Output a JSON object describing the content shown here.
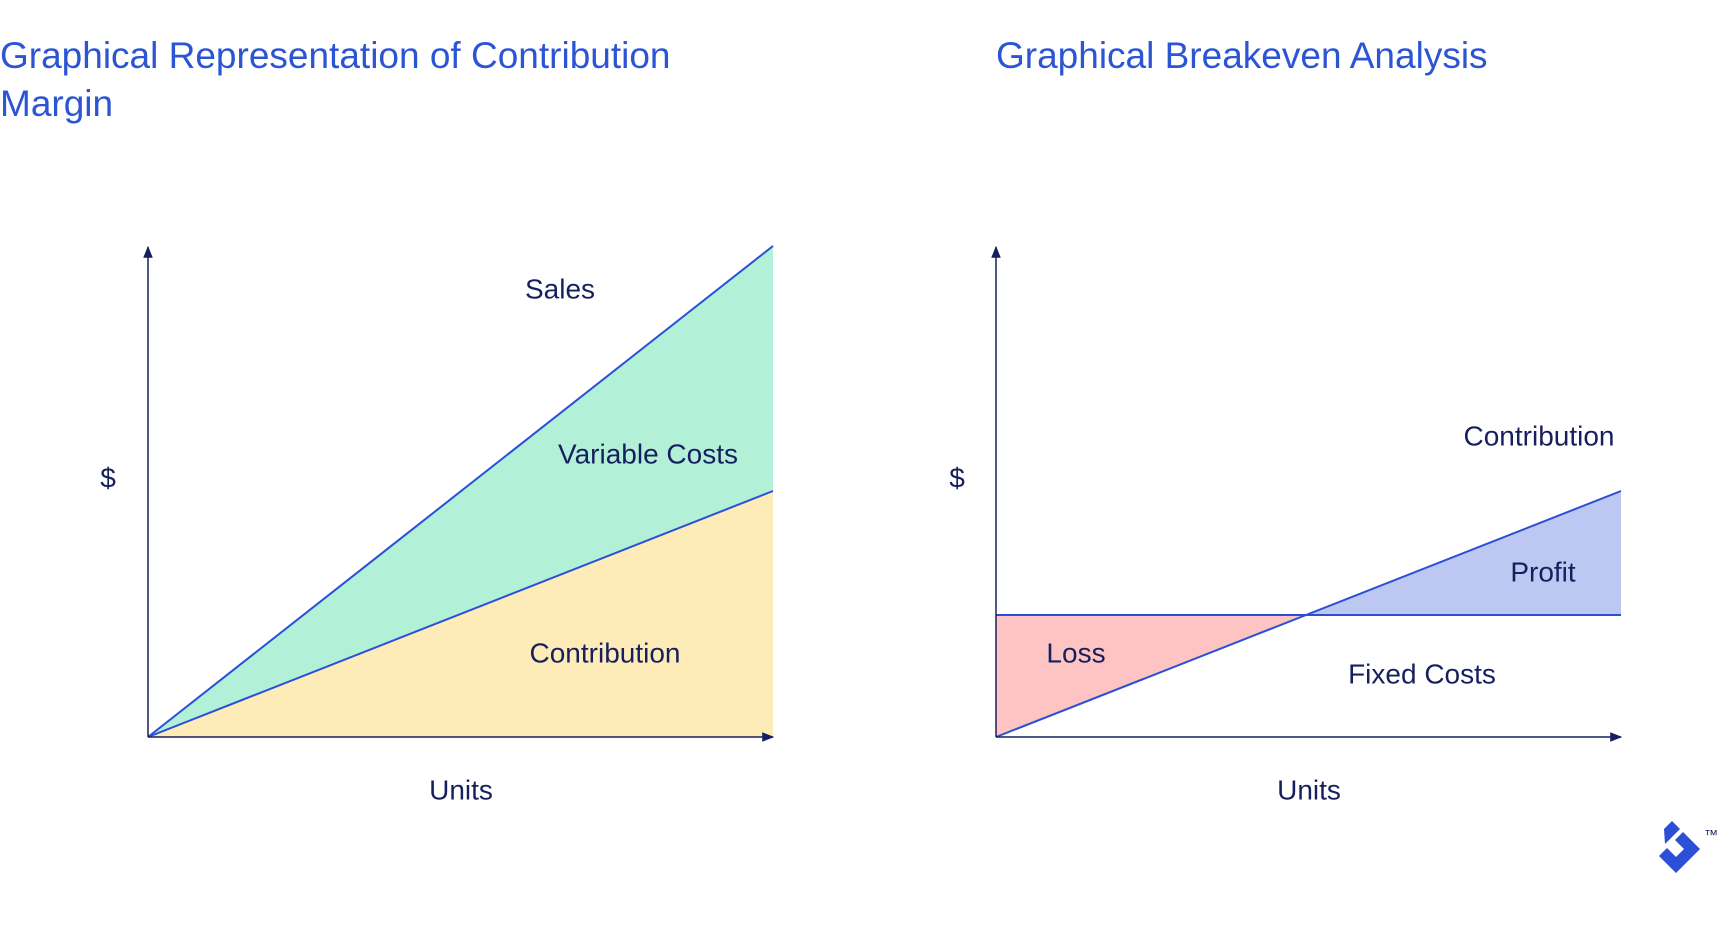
{
  "left": {
    "title": "Graphical Representation of Contribution Margin",
    "y_label": "$",
    "x_label": "Units",
    "labels": [
      "Sales",
      "Variable Costs",
      "Contribution"
    ]
  },
  "right": {
    "title": "Graphical Breakeven Analysis",
    "y_label": "$",
    "x_label": "Units",
    "labels": [
      "Contribution",
      "Profit",
      "Loss",
      "Fixed Costs"
    ]
  },
  "logo": {
    "mark": "™"
  }
}
